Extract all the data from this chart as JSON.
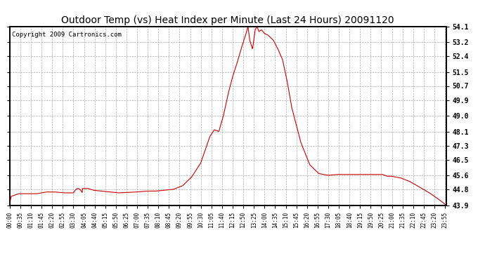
{
  "title": "Outdoor Temp (vs) Heat Index per Minute (Last 24 Hours) 20091120",
  "copyright": "Copyright 2009 Cartronics.com",
  "line_color": "#cc0000",
  "background_color": "#ffffff",
  "grid_color": "#aaaaaa",
  "y_min": 43.9,
  "y_max": 54.1,
  "y_ticks": [
    43.9,
    44.8,
    45.6,
    46.5,
    47.3,
    48.1,
    49.0,
    49.9,
    50.7,
    51.5,
    52.4,
    53.2,
    54.1
  ],
  "x_labels": [
    "00:00",
    "00:35",
    "01:10",
    "01:45",
    "02:20",
    "02:55",
    "03:30",
    "04:05",
    "04:40",
    "05:15",
    "05:50",
    "06:25",
    "07:00",
    "07:35",
    "08:10",
    "08:45",
    "09:20",
    "09:55",
    "10:30",
    "11:05",
    "11:40",
    "12:15",
    "12:50",
    "13:25",
    "14:00",
    "14:35",
    "15:10",
    "15:45",
    "16:20",
    "16:55",
    "17:30",
    "18:05",
    "18:40",
    "19:15",
    "19:50",
    "20:25",
    "21:00",
    "21:35",
    "22:10",
    "22:45",
    "23:20",
    "23:55"
  ],
  "title_fontsize": 10,
  "tick_fontsize": 7,
  "xtick_fontsize": 5.5,
  "copyright_fontsize": 6.5
}
